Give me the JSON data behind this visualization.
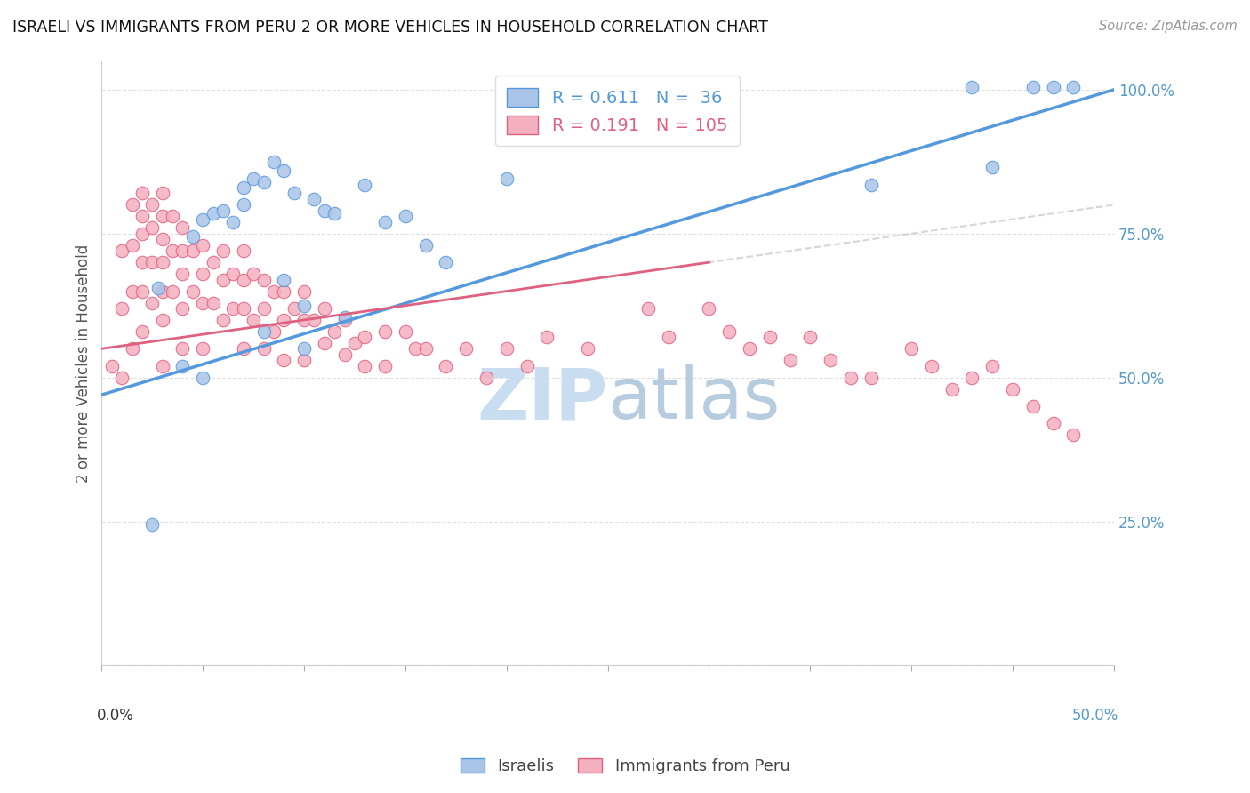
{
  "title": "ISRAELI VS IMMIGRANTS FROM PERU 2 OR MORE VEHICLES IN HOUSEHOLD CORRELATION CHART",
  "source": "Source: ZipAtlas.com",
  "ylabel": "2 or more Vehicles in Household",
  "xmin": 0.0,
  "xmax": 0.5,
  "ymin": 0.0,
  "ymax": 1.05,
  "legend_R_israeli": "0.611",
  "legend_N_israeli": "36",
  "legend_R_peru": "0.191",
  "legend_N_peru": "105",
  "color_israeli_fill": "#aac4e8",
  "color_peru_fill": "#f5b0c0",
  "color_line_israeli": "#5599dd",
  "color_line_peru": "#e06080",
  "color_dashed": "#cccccc",
  "watermark_color": "#ddeeff",
  "israeli_x": [
    0.025,
    0.028,
    0.04,
    0.045,
    0.05,
    0.05,
    0.055,
    0.06,
    0.065,
    0.07,
    0.07,
    0.075,
    0.08,
    0.08,
    0.085,
    0.09,
    0.09,
    0.095,
    0.1,
    0.1,
    0.105,
    0.11,
    0.115,
    0.12,
    0.13,
    0.14,
    0.15,
    0.16,
    0.17,
    0.2,
    0.38,
    0.43,
    0.44,
    0.46,
    0.47,
    0.48
  ],
  "israeli_y": [
    0.245,
    0.655,
    0.52,
    0.745,
    0.775,
    0.5,
    0.785,
    0.79,
    0.77,
    0.83,
    0.8,
    0.845,
    0.84,
    0.58,
    0.875,
    0.86,
    0.67,
    0.82,
    0.625,
    0.55,
    0.81,
    0.79,
    0.785,
    0.605,
    0.835,
    0.77,
    0.78,
    0.73,
    0.7,
    0.845,
    0.835,
    1.005,
    0.865,
    1.005,
    1.005,
    1.005
  ],
  "peru_x": [
    0.005,
    0.01,
    0.01,
    0.01,
    0.015,
    0.015,
    0.015,
    0.015,
    0.02,
    0.02,
    0.02,
    0.02,
    0.02,
    0.02,
    0.025,
    0.025,
    0.025,
    0.025,
    0.03,
    0.03,
    0.03,
    0.03,
    0.03,
    0.03,
    0.03,
    0.035,
    0.035,
    0.035,
    0.04,
    0.04,
    0.04,
    0.04,
    0.04,
    0.045,
    0.045,
    0.05,
    0.05,
    0.05,
    0.05,
    0.055,
    0.055,
    0.06,
    0.06,
    0.06,
    0.065,
    0.065,
    0.07,
    0.07,
    0.07,
    0.07,
    0.075,
    0.075,
    0.08,
    0.08,
    0.08,
    0.085,
    0.085,
    0.09,
    0.09,
    0.09,
    0.095,
    0.1,
    0.1,
    0.1,
    0.105,
    0.11,
    0.11,
    0.115,
    0.12,
    0.12,
    0.125,
    0.13,
    0.13,
    0.14,
    0.14,
    0.15,
    0.155,
    0.16,
    0.17,
    0.18,
    0.19,
    0.2,
    0.21,
    0.22,
    0.24,
    0.27,
    0.28,
    0.3,
    0.31,
    0.32,
    0.33,
    0.34,
    0.35,
    0.36,
    0.37,
    0.38,
    0.4,
    0.41,
    0.42,
    0.43,
    0.44,
    0.45,
    0.46,
    0.47,
    0.48
  ],
  "peru_y": [
    0.52,
    0.72,
    0.62,
    0.5,
    0.8,
    0.73,
    0.65,
    0.55,
    0.82,
    0.78,
    0.75,
    0.7,
    0.65,
    0.58,
    0.8,
    0.76,
    0.7,
    0.63,
    0.82,
    0.78,
    0.74,
    0.7,
    0.65,
    0.6,
    0.52,
    0.78,
    0.72,
    0.65,
    0.76,
    0.72,
    0.68,
    0.62,
    0.55,
    0.72,
    0.65,
    0.73,
    0.68,
    0.63,
    0.55,
    0.7,
    0.63,
    0.72,
    0.67,
    0.6,
    0.68,
    0.62,
    0.72,
    0.67,
    0.62,
    0.55,
    0.68,
    0.6,
    0.67,
    0.62,
    0.55,
    0.65,
    0.58,
    0.65,
    0.6,
    0.53,
    0.62,
    0.65,
    0.6,
    0.53,
    0.6,
    0.62,
    0.56,
    0.58,
    0.6,
    0.54,
    0.56,
    0.57,
    0.52,
    0.58,
    0.52,
    0.58,
    0.55,
    0.55,
    0.52,
    0.55,
    0.5,
    0.55,
    0.52,
    0.57,
    0.55,
    0.62,
    0.57,
    0.62,
    0.58,
    0.55,
    0.57,
    0.53,
    0.57,
    0.53,
    0.5,
    0.5,
    0.55,
    0.52,
    0.48,
    0.5,
    0.52,
    0.48,
    0.45,
    0.42,
    0.4
  ]
}
